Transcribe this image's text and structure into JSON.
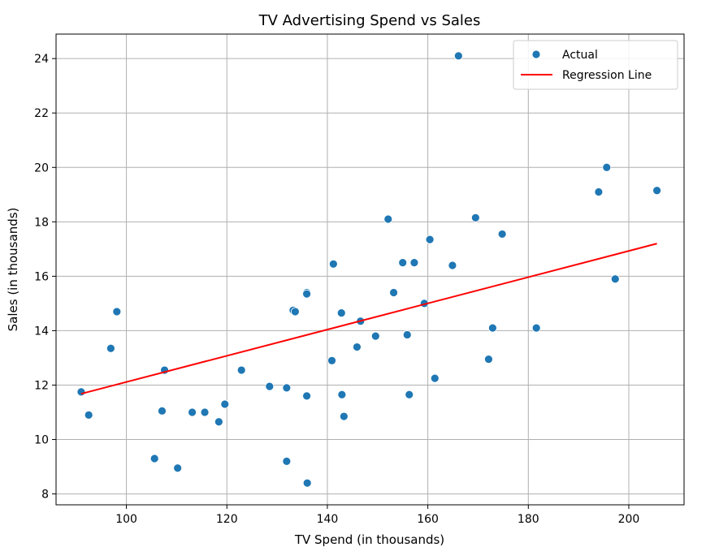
{
  "chart_data": {
    "type": "scatter",
    "title": "TV Advertising Spend vs Sales",
    "xlabel": "TV Spend (in thousands)",
    "ylabel": "Sales (in thousands)",
    "xlim": [
      86,
      211
    ],
    "ylim": [
      7.6,
      24.9
    ],
    "xticks": [
      100,
      120,
      140,
      160,
      180,
      200
    ],
    "yticks": [
      8,
      10,
      12,
      14,
      16,
      18,
      20,
      22,
      24
    ],
    "grid": true,
    "legend_position": "top-right",
    "colors": {
      "points": "#1f77b4",
      "line": "#ff0000",
      "grid": "#b0b0b0",
      "axes": "#000000"
    },
    "series": [
      {
        "name": "Actual",
        "kind": "scatter",
        "points": [
          [
            91.0,
            11.75
          ],
          [
            92.5,
            10.9
          ],
          [
            96.9,
            13.35
          ],
          [
            98.1,
            14.7
          ],
          [
            105.6,
            9.3
          ],
          [
            107.1,
            11.05
          ],
          [
            107.6,
            12.55
          ],
          [
            110.2,
            8.95
          ],
          [
            113.1,
            11.0
          ],
          [
            115.6,
            11.0
          ],
          [
            118.4,
            10.65
          ],
          [
            119.6,
            11.3
          ],
          [
            122.9,
            12.55
          ],
          [
            128.5,
            11.95
          ],
          [
            131.9,
            11.9
          ],
          [
            131.9,
            9.2
          ],
          [
            133.2,
            14.75
          ],
          [
            133.6,
            14.7
          ],
          [
            135.9,
            15.4
          ],
          [
            135.9,
            15.35
          ],
          [
            135.9,
            11.6
          ],
          [
            136.0,
            8.4
          ],
          [
            140.9,
            12.9
          ],
          [
            141.2,
            16.45
          ],
          [
            142.8,
            14.65
          ],
          [
            142.9,
            11.65
          ],
          [
            143.3,
            10.85
          ],
          [
            145.9,
            13.4
          ],
          [
            146.6,
            14.35
          ],
          [
            149.6,
            13.8
          ],
          [
            152.1,
            18.1
          ],
          [
            153.2,
            15.4
          ],
          [
            155.0,
            16.5
          ],
          [
            155.9,
            13.85
          ],
          [
            156.3,
            11.65
          ],
          [
            157.3,
            16.5
          ],
          [
            159.3,
            15.0
          ],
          [
            160.4,
            17.35
          ],
          [
            161.4,
            12.25
          ],
          [
            164.9,
            16.4
          ],
          [
            166.1,
            24.1
          ],
          [
            169.5,
            18.15
          ],
          [
            172.1,
            12.95
          ],
          [
            172.9,
            14.1
          ],
          [
            174.8,
            17.55
          ],
          [
            181.6,
            14.1
          ],
          [
            194.0,
            19.1
          ],
          [
            195.6,
            20.0
          ],
          [
            197.3,
            15.9
          ],
          [
            205.6,
            19.15
          ]
        ]
      },
      {
        "name": "Regression Line",
        "kind": "line",
        "points": [
          [
            91.0,
            11.68
          ],
          [
            205.6,
            17.2
          ]
        ]
      }
    ]
  }
}
